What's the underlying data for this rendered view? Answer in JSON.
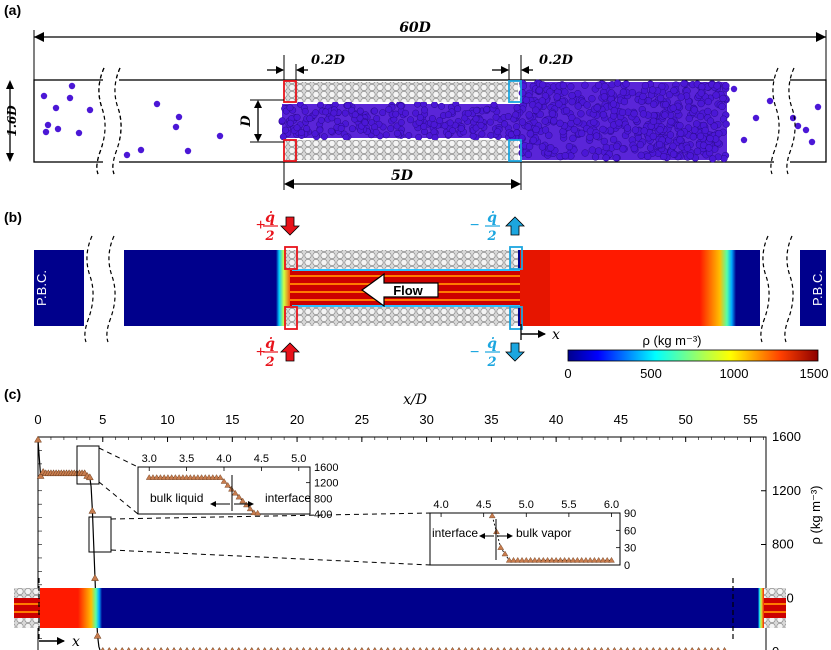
{
  "panel_a": {
    "label": "(a)",
    "total_length": "60D",
    "height": "1.6D",
    "pore_height": "D",
    "thermostat_left": "0.2D",
    "thermostat_right": "0.2D",
    "pore_length": "5D"
  },
  "panel_b": {
    "label": "(b)",
    "pbc_left": "P.B.C.",
    "pbc_right": "P.B.C.",
    "flow": "Flow",
    "heat_in": "+",
    "heat_out": "−",
    "q_num": "q̇",
    "q_den": "2",
    "x_axis": "x",
    "colorbar_title": "ρ (kg m⁻³)",
    "colorbar_ticks": [
      "0",
      "500",
      "1000",
      "1500"
    ]
  },
  "panel_c": {
    "label": "(c)",
    "x_axis": "x/D",
    "x_arrow": "x",
    "y_label": "ρ (kg m⁻³)",
    "x_ticks": [
      "0",
      "5",
      "10",
      "15",
      "20",
      "25",
      "30",
      "35",
      "40",
      "45",
      "50",
      "55"
    ],
    "y_ticks": [
      "0",
      "400",
      "800",
      "1200",
      "1600"
    ],
    "inset1": {
      "x_ticks": [
        "3.0",
        "3.5",
        "4.0",
        "4.5",
        "5.0"
      ],
      "y_ticks": [
        "400",
        "800",
        "1200",
        "1600"
      ],
      "label_left": "bulk liquid",
      "label_right": "interface"
    },
    "inset2": {
      "x_ticks": [
        "4.0",
        "4.5",
        "5.0",
        "5.5",
        "6.0"
      ],
      "y_ticks": [
        "0",
        "30",
        "60",
        "90"
      ],
      "label_left": "interface",
      "label_right": "bulk vapor"
    }
  },
  "chart_data": {
    "type": "scatter",
    "xlabel": "x/D",
    "ylabel": "ρ (kg m⁻³)",
    "xlim": [
      0,
      60
    ],
    "ylim": [
      0,
      1600
    ],
    "x": [
      0.0,
      0.2,
      0.4,
      0.6,
      0.8,
      1.0,
      1.2,
      1.4,
      1.6,
      1.8,
      2.0,
      2.2,
      2.4,
      2.6,
      2.8,
      3.0,
      3.2,
      3.4,
      3.6,
      3.8,
      4.0,
      4.1,
      4.2,
      4.3,
      4.4,
      4.5,
      4.6,
      4.7,
      4.8,
      5.0,
      6.0,
      10.0,
      20.0,
      30.0,
      40.0,
      50.0,
      53.0
    ],
    "values": [
      1580,
      1310,
      1340,
      1330,
      1330,
      1330,
      1330,
      1330,
      1330,
      1330,
      1330,
      1330,
      1330,
      1330,
      1330,
      1330,
      1330,
      1330,
      1330,
      1310,
      1300,
      1230,
      1050,
      800,
      550,
      300,
      120,
      40,
      10,
      8,
      8,
      8,
      8,
      8,
      8,
      8,
      8
    ]
  },
  "colors": {
    "red_thermostat": "#e8131b",
    "blue_thermostat": "#1ca6df",
    "particles": "#4b17d6",
    "liquid": "#ff1a00",
    "vapor": "#00008c",
    "marker_fill": "#c77c4e"
  }
}
